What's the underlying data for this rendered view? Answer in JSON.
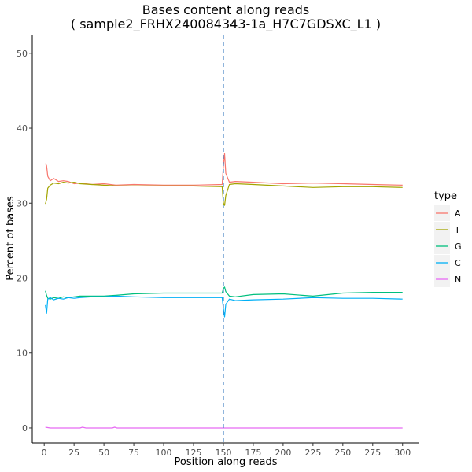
{
  "chart_data": {
    "type": "line",
    "title": "Bases content along reads",
    "subtitle": "( sample2_FRHX240084343-1a_H7C7GDSXC_L1 )",
    "xlabel": "Position along reads",
    "ylabel": "Percent of bases",
    "xlim": [
      -10,
      314
    ],
    "ylim": [
      -2,
      52.5
    ],
    "xticks": [
      0,
      25,
      50,
      75,
      100,
      125,
      150,
      175,
      200,
      225,
      250,
      275,
      300
    ],
    "yticks": [
      0,
      10,
      20,
      30,
      40,
      50
    ],
    "grid": false,
    "vline": {
      "x": 150,
      "style": "dashed",
      "color": "#4a86c5"
    },
    "legend": {
      "title": "type",
      "placement": "right"
    },
    "series": [
      {
        "name": "A",
        "color": "#F8766D",
        "x": [
          1,
          2,
          3,
          5,
          8,
          12,
          16,
          20,
          25,
          30,
          40,
          50,
          60,
          75,
          100,
          125,
          149,
          150,
          151,
          152,
          155,
          160,
          175,
          200,
          225,
          250,
          275,
          300
        ],
        "values": [
          35.3,
          35.0,
          33.6,
          33.0,
          33.3,
          32.9,
          33.0,
          32.9,
          32.6,
          32.7,
          32.5,
          32.6,
          32.4,
          32.5,
          32.4,
          32.4,
          32.5,
          35.0,
          36.6,
          34.0,
          32.8,
          32.9,
          32.8,
          32.6,
          32.7,
          32.6,
          32.5,
          32.4
        ]
      },
      {
        "name": "T",
        "color": "#A3A500",
        "x": [
          1,
          2,
          3,
          5,
          8,
          12,
          16,
          20,
          25,
          30,
          40,
          50,
          60,
          75,
          100,
          125,
          149,
          150,
          151,
          152,
          155,
          160,
          175,
          200,
          225,
          250,
          275,
          300
        ],
        "values": [
          29.9,
          30.5,
          32.0,
          32.4,
          32.7,
          32.6,
          32.8,
          32.7,
          32.8,
          32.6,
          32.5,
          32.4,
          32.3,
          32.3,
          32.3,
          32.3,
          32.2,
          30.0,
          29.7,
          31.0,
          32.5,
          32.6,
          32.5,
          32.3,
          32.1,
          32.2,
          32.2,
          32.1
        ]
      },
      {
        "name": "G",
        "color": "#00BF7D",
        "x": [
          1,
          2,
          3,
          5,
          8,
          12,
          16,
          20,
          25,
          30,
          40,
          50,
          60,
          75,
          100,
          125,
          149,
          150,
          151,
          152,
          155,
          160,
          175,
          200,
          225,
          250,
          275,
          300
        ],
        "values": [
          18.3,
          17.7,
          17.3,
          17.2,
          17.4,
          17.3,
          17.5,
          17.4,
          17.5,
          17.6,
          17.6,
          17.6,
          17.7,
          17.9,
          18.0,
          18.0,
          18.0,
          18.6,
          18.8,
          18.2,
          17.6,
          17.5,
          17.8,
          17.9,
          17.6,
          18.0,
          18.1,
          18.1
        ]
      },
      {
        "name": "C",
        "color": "#00B0F6",
        "x": [
          1,
          2,
          3,
          5,
          8,
          12,
          16,
          20,
          25,
          30,
          40,
          50,
          60,
          75,
          100,
          125,
          149,
          150,
          151,
          152,
          155,
          160,
          175,
          200,
          225,
          250,
          275,
          300
        ],
        "values": [
          16.4,
          15.3,
          17.2,
          17.4,
          17.1,
          17.3,
          17.2,
          17.4,
          17.3,
          17.4,
          17.5,
          17.5,
          17.6,
          17.5,
          17.4,
          17.4,
          17.4,
          15.9,
          14.8,
          16.5,
          17.2,
          17.0,
          17.1,
          17.2,
          17.4,
          17.3,
          17.3,
          17.2
        ]
      },
      {
        "name": "N",
        "color": "#E76BF3",
        "x": [
          1,
          5,
          10,
          30,
          32,
          35,
          57,
          59,
          61,
          100,
          150,
          200,
          250,
          300
        ],
        "values": [
          0.1,
          0.0,
          0.0,
          0.0,
          0.1,
          0.0,
          0.0,
          0.1,
          0.0,
          0.0,
          0.0,
          0.0,
          0.0,
          0.0
        ]
      }
    ]
  }
}
